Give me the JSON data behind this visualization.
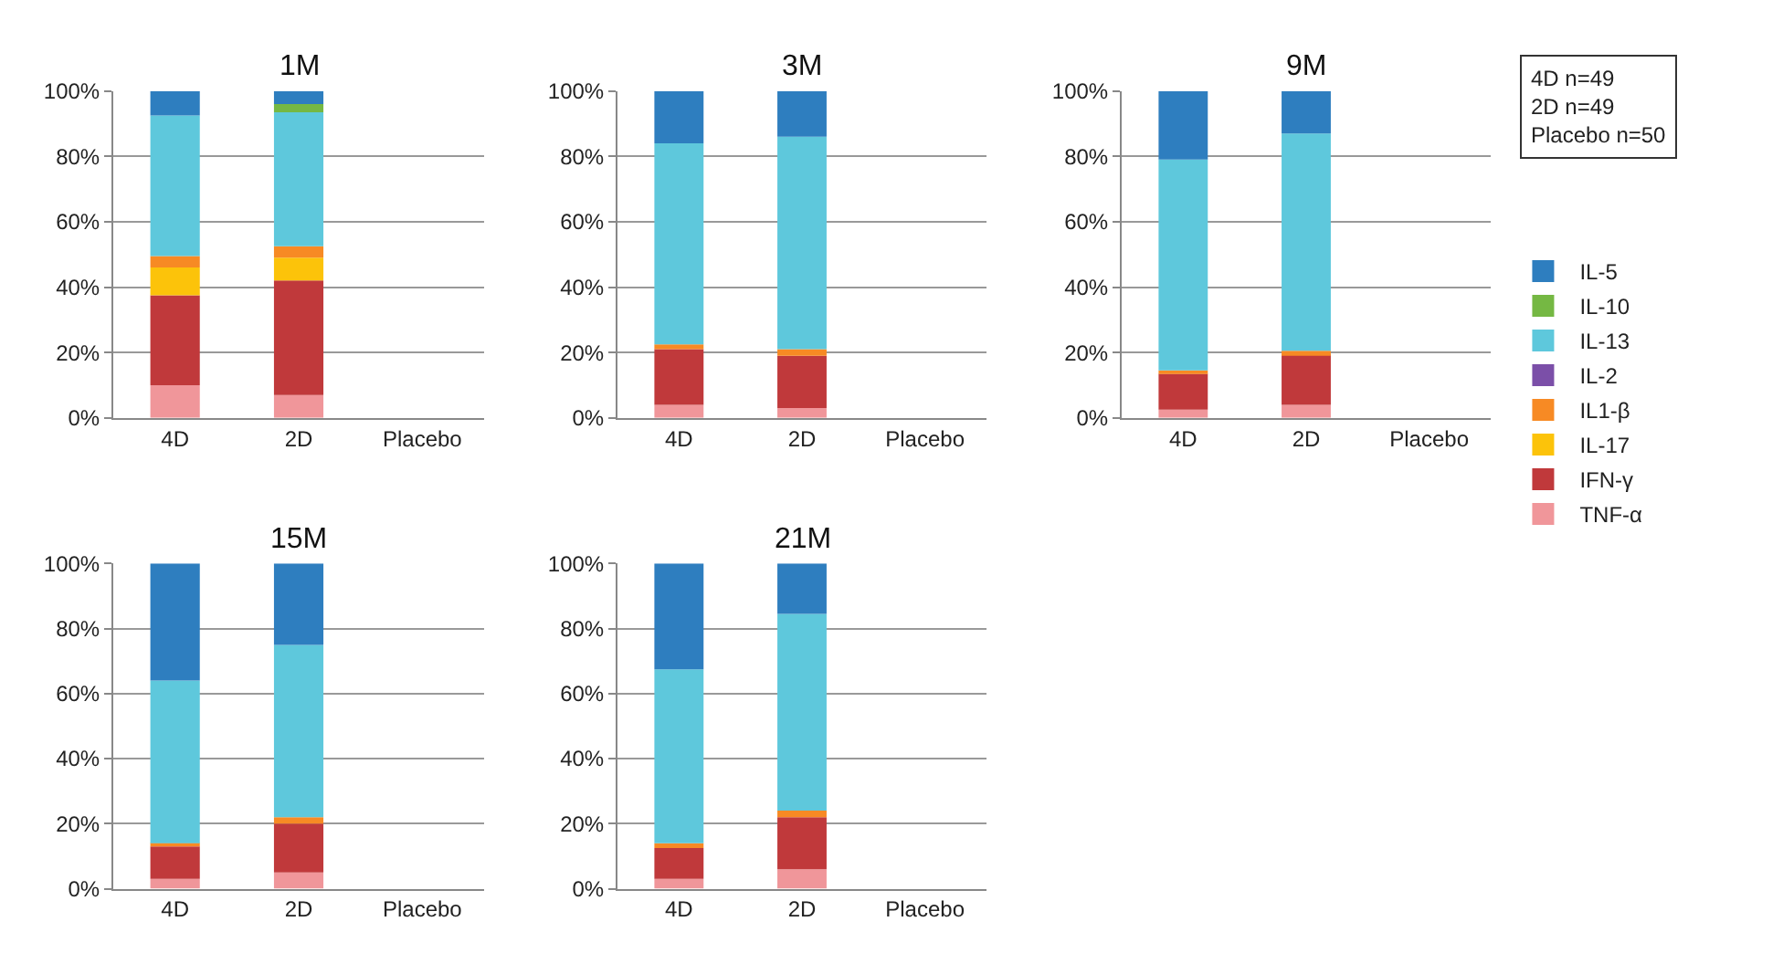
{
  "chart_data": [
    {
      "type": "bar",
      "title": "1M",
      "stacked": true,
      "grid": "y",
      "legend": "right",
      "categories": [
        "4D",
        "2D",
        "Placebo"
      ],
      "ylim": [
        0,
        100
      ],
      "yticks": [
        {
          "value": 0,
          "label": "0%"
        },
        {
          "value": 20,
          "label": "20%"
        },
        {
          "value": 40,
          "label": "40%"
        },
        {
          "value": 60,
          "label": "60%"
        },
        {
          "value": 80,
          "label": "80%"
        },
        {
          "value": 100,
          "label": "100%"
        }
      ],
      "annotations": [
        "4D n=49\n2D n=49\nPlacebo n=50"
      ],
      "series": [
        {
          "name": "TNF-α",
          "color": "#f0969a",
          "values": [
            10,
            7,
            null
          ]
        },
        {
          "name": "IFN-γ",
          "color": "#c0393b",
          "values": [
            27.5,
            35,
            null
          ]
        },
        {
          "name": "IL-17",
          "color": "#fcc30a",
          "values": [
            8.5,
            7,
            null
          ]
        },
        {
          "name": "IL1-β",
          "color": "#f78a24",
          "values": [
            3.5,
            3.5,
            null
          ]
        },
        {
          "name": "IL-2",
          "color": "#7b4fa8",
          "values": [
            0,
            0,
            null
          ]
        },
        {
          "name": "IL-13",
          "color": "#5ec8dc",
          "values": [
            43,
            41,
            null
          ]
        },
        {
          "name": "IL-10",
          "color": "#75b843",
          "values": [
            0,
            2.5,
            null
          ]
        },
        {
          "name": "IL-5",
          "color": "#2e7ebf",
          "values": [
            7.5,
            4,
            null
          ]
        }
      ]
    },
    {
      "type": "bar",
      "title": "3M",
      "stacked": true,
      "grid": "y",
      "categories": [
        "4D",
        "2D",
        "Placebo"
      ],
      "ylim": [
        0,
        100
      ],
      "yticks": [
        {
          "value": 0,
          "label": "0%"
        },
        {
          "value": 20,
          "label": "20%"
        },
        {
          "value": 40,
          "label": "40%"
        },
        {
          "value": 60,
          "label": "60%"
        },
        {
          "value": 80,
          "label": "80%"
        },
        {
          "value": 100,
          "label": "100%"
        }
      ],
      "series": [
        {
          "color": "#f0969a",
          "values": [
            4,
            3,
            null
          ]
        },
        {
          "color": "#c0393b",
          "values": [
            17,
            16,
            null
          ]
        },
        {
          "color": "#fcc30a",
          "values": [
            0,
            0,
            null
          ]
        },
        {
          "color": "#f78a24",
          "values": [
            1.5,
            2,
            null
          ]
        },
        {
          "color": "#7b4fa8",
          "values": [
            0,
            0,
            null
          ]
        },
        {
          "color": "#5ec8dc",
          "values": [
            61.5,
            65,
            null
          ]
        },
        {
          "color": "#75b843",
          "values": [
            0,
            0,
            null
          ]
        },
        {
          "color": "#2e7ebf",
          "values": [
            16,
            14,
            null
          ]
        }
      ]
    },
    {
      "type": "bar",
      "title": "9M",
      "stacked": true,
      "grid": "y",
      "categories": [
        "4D",
        "2D",
        "Placebo"
      ],
      "ylim": [
        0,
        100
      ],
      "yticks": [
        {
          "value": 0,
          "label": "0%"
        },
        {
          "value": 20,
          "label": "20%"
        },
        {
          "value": 40,
          "label": "40%"
        },
        {
          "value": 60,
          "label": "60%"
        },
        {
          "value": 80,
          "label": "80%"
        },
        {
          "value": 100,
          "label": "100%"
        }
      ],
      "series": [
        {
          "color": "#f0969a",
          "values": [
            2.5,
            4,
            null
          ]
        },
        {
          "color": "#c0393b",
          "values": [
            11,
            15.5,
            null
          ]
        },
        {
          "color": "#fcc30a",
          "values": [
            0,
            0,
            null
          ]
        },
        {
          "color": "#f78a24",
          "values": [
            1,
            1,
            null
          ]
        },
        {
          "color": "#7b4fa8",
          "values": [
            0,
            0,
            null
          ]
        },
        {
          "color": "#5ec8dc",
          "values": [
            64.5,
            66.5,
            null
          ]
        },
        {
          "color": "#75b843",
          "values": [
            0,
            0,
            null
          ]
        },
        {
          "color": "#2e7ebf",
          "values": [
            21,
            13,
            null
          ]
        }
      ]
    },
    {
      "type": "bar",
      "title": "15M",
      "stacked": true,
      "grid": "y",
      "categories": [
        "4D",
        "2D",
        "Placebo"
      ],
      "ylim": [
        0,
        100
      ],
      "yticks": [
        {
          "value": 0,
          "label": "0%"
        },
        {
          "value": 20,
          "label": "20%"
        },
        {
          "value": 40,
          "label": "40%"
        },
        {
          "value": 60,
          "label": "60%"
        },
        {
          "value": 80,
          "label": "80%"
        },
        {
          "value": 100,
          "label": "100%"
        }
      ],
      "series": [
        {
          "color": "#f0969a",
          "values": [
            3,
            5,
            null
          ]
        },
        {
          "color": "#c0393b",
          "values": [
            10,
            15,
            null
          ]
        },
        {
          "color": "#fcc30a",
          "values": [
            0,
            0,
            null
          ]
        },
        {
          "color": "#f78a24",
          "values": [
            1,
            2,
            null
          ]
        },
        {
          "color": "#7b4fa8",
          "values": [
            0,
            0,
            null
          ]
        },
        {
          "color": "#5ec8dc",
          "values": [
            50,
            53,
            null
          ]
        },
        {
          "color": "#75b843",
          "values": [
            0,
            0,
            null
          ]
        },
        {
          "color": "#2e7ebf",
          "values": [
            36,
            25,
            null
          ]
        }
      ]
    },
    {
      "type": "bar",
      "title": "21M",
      "stacked": true,
      "grid": "y",
      "categories": [
        "4D",
        "2D",
        "Placebo"
      ],
      "ylim": [
        0,
        100
      ],
      "yticks": [
        {
          "value": 0,
          "label": "0%"
        },
        {
          "value": 20,
          "label": "20%"
        },
        {
          "value": 40,
          "label": "40%"
        },
        {
          "value": 60,
          "label": "60%"
        },
        {
          "value": 80,
          "label": "80%"
        },
        {
          "value": 100,
          "label": "100%"
        }
      ],
      "series": [
        {
          "color": "#f0969a",
          "values": [
            3,
            6,
            null
          ]
        },
        {
          "color": "#c0393b",
          "values": [
            9.5,
            16,
            null
          ]
        },
        {
          "color": "#fcc30a",
          "values": [
            0,
            0,
            null
          ]
        },
        {
          "color": "#f78a24",
          "values": [
            1.5,
            2,
            null
          ]
        },
        {
          "color": "#7b4fa8",
          "values": [
            0,
            0,
            null
          ]
        },
        {
          "color": "#5ec8dc",
          "values": [
            53.5,
            60.5,
            null
          ]
        },
        {
          "color": "#75b843",
          "values": [
            0,
            0,
            null
          ]
        },
        {
          "color": "#2e7ebf",
          "values": [
            32.5,
            15.5,
            null
          ]
        }
      ]
    }
  ]
}
